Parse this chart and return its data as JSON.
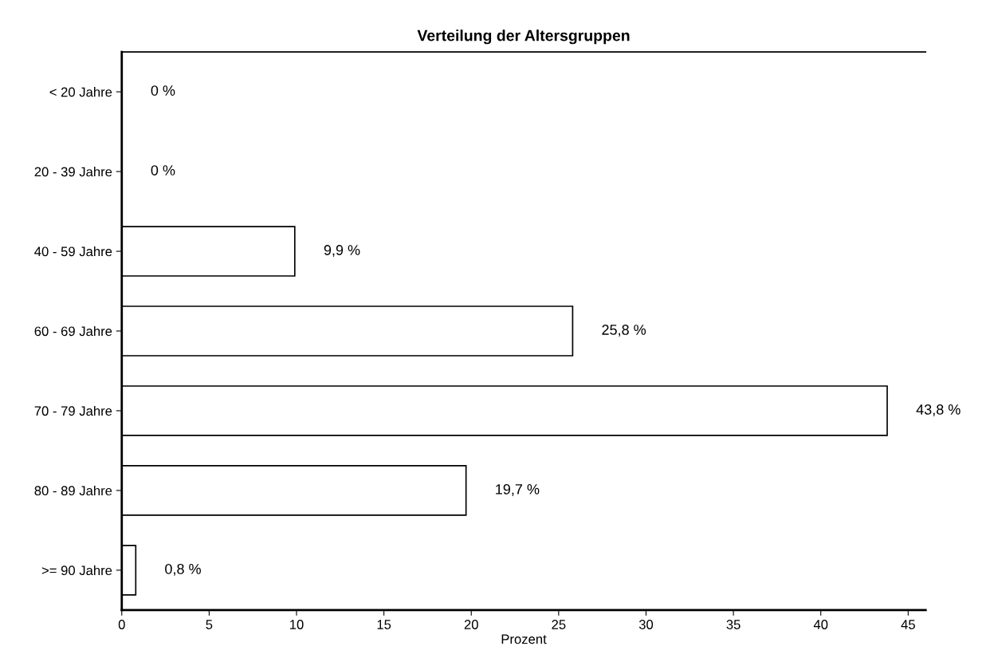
{
  "chart_data": {
    "type": "bar",
    "orientation": "horizontal",
    "title": "Verteilung der Altersgruppen",
    "xlabel": "Prozent",
    "categories": [
      "< 20 Jahre",
      "20 - 39 Jahre",
      "40 - 59 Jahre",
      "60 - 69 Jahre",
      "70 - 79 Jahre",
      "80 - 89 Jahre",
      ">= 90 Jahre"
    ],
    "values": [
      0,
      0,
      9.9,
      25.8,
      43.8,
      19.7,
      0.8
    ],
    "value_labels": [
      "0 %",
      "0 %",
      "9,9 %",
      "25,8 %",
      "43,8 %",
      "19,7 %",
      "0,8 %"
    ],
    "color": "#ffffff",
    "xlim": [
      0,
      46
    ],
    "xticks": [
      0,
      5,
      10,
      15,
      20,
      25,
      30,
      35,
      40,
      45
    ],
    "grid": false,
    "legend": false
  }
}
